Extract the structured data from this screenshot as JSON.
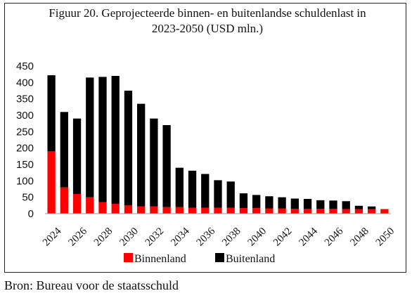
{
  "chart_data": {
    "type": "bar",
    "stacked": true,
    "title": "Figuur 20. Geprojecteerde binnen- en buitenlandse schuldenlast in 2023-2050  (USD mln.)",
    "years": [
      2024,
      2025,
      2026,
      2027,
      2028,
      2029,
      2030,
      2031,
      2032,
      2033,
      2034,
      2035,
      2036,
      2037,
      2038,
      2039,
      2040,
      2041,
      2042,
      2043,
      2044,
      2045,
      2046,
      2047,
      2048,
      2049,
      2050
    ],
    "x_tick_labels": [
      "2024",
      "2026",
      "2028",
      "2030",
      "2032",
      "2034",
      "2036",
      "2038",
      "2040",
      "2042",
      "2044",
      "2046",
      "2048",
      "2050"
    ],
    "series": [
      {
        "name": "Binnenland",
        "color": "#ff0000",
        "values": [
          190,
          80,
          60,
          50,
          35,
          30,
          25,
          22,
          22,
          20,
          20,
          18,
          18,
          18,
          18,
          17,
          17,
          16,
          16,
          15,
          15,
          15,
          15,
          14,
          14,
          14,
          14
        ]
      },
      {
        "name": "Buitenland",
        "color": "#000000",
        "values": [
          232,
          230,
          230,
          365,
          382,
          390,
          350,
          313,
          268,
          250,
          120,
          113,
          103,
          84,
          80,
          45,
          40,
          37,
          34,
          31,
          30,
          26,
          25,
          24,
          10,
          8,
          0
        ]
      }
    ],
    "y_ticks": [
      0,
      50,
      100,
      150,
      200,
      250,
      300,
      350,
      400,
      450
    ],
    "ylim": [
      0,
      450
    ],
    "legend_position": "bottom"
  },
  "source": "Bron: Bureau voor de staatsschuld"
}
